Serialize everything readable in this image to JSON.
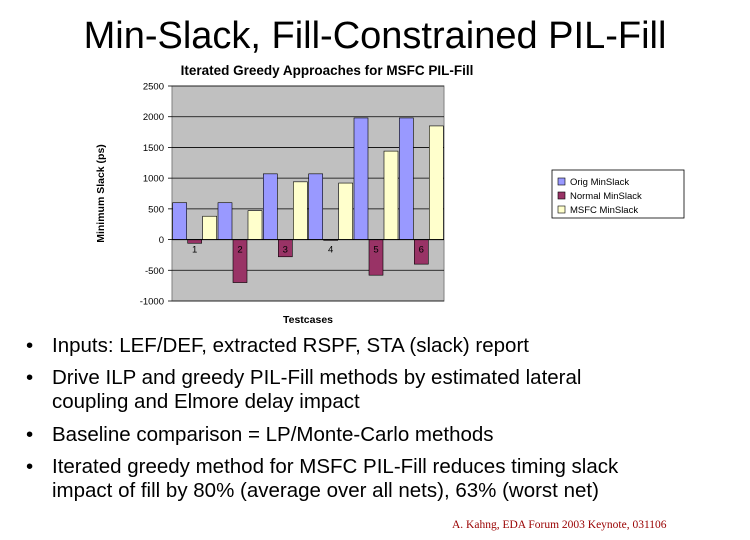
{
  "slide": {
    "title": "Min-Slack, Fill-Constrained PIL-Fill",
    "bullet_glyph": "•",
    "bullets": [
      [
        "Inputs:  LEF/DEF, extracted RSPF, STA (slack) report"
      ],
      [
        "Drive ILP and greedy PIL-Fill methods by estimated lateral",
        "coupling and Elmore delay impact"
      ],
      [
        "Baseline comparison =  LP/Monte-Carlo methods"
      ],
      [
        "Iterated greedy method for MSFC PIL-Fill reduces timing slack",
        "impact of fill by 80% (average over all nets), 63% (worst net)"
      ]
    ],
    "footer": "A. Kahng, EDA Forum 2003 Keynote, 031106"
  },
  "chart_data": {
    "type": "bar",
    "title": "Iterated Greedy Approaches for MSFC PIL-Fill",
    "xlabel": "Testcases",
    "ylabel": "Minimum Slack (ps)",
    "categories": [
      "1",
      "2",
      "3",
      "4",
      "5",
      "6"
    ],
    "ylim": [
      -1000,
      2500
    ],
    "yticks": [
      -1000,
      -500,
      0,
      500,
      1000,
      1500,
      2000,
      2500
    ],
    "ytick_labels": [
      "-1000",
      "-500",
      "0",
      "500",
      "1000",
      "1500",
      "2000",
      "2500"
    ],
    "grid": "horizontal",
    "legend_position": "right",
    "series": [
      {
        "name": "Orig MinSlack",
        "values": [
          600,
          600,
          1070,
          1070,
          1980,
          1980
        ],
        "color": "#9999ff"
      },
      {
        "name": "Normal MinSlack",
        "values": [
          -60,
          -700,
          -280,
          0,
          -580,
          -400
        ],
        "color": "#993366"
      },
      {
        "name": "MSFC MinSlack",
        "values": [
          380,
          470,
          940,
          920,
          1440,
          1850
        ],
        "color": "#ffffcc"
      }
    ],
    "plot_background": "#c0c0c0"
  }
}
